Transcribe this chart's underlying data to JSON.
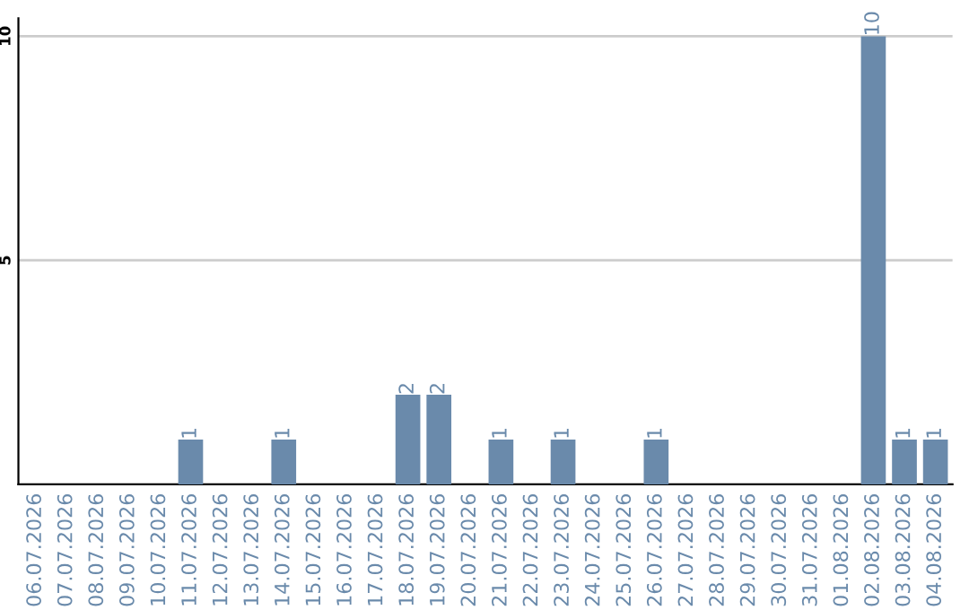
{
  "chart_data": {
    "type": "bar",
    "categories": [
      "06.07.2026",
      "07.07.2026",
      "08.07.2026",
      "09.07.2026",
      "10.07.2026",
      "11.07.2026",
      "12.07.2026",
      "13.07.2026",
      "14.07.2026",
      "15.07.2026",
      "16.07.2026",
      "17.07.2026",
      "18.07.2026",
      "19.07.2026",
      "20.07.2026",
      "21.07.2026",
      "22.07.2026",
      "23.07.2026",
      "24.07.2026",
      "25.07.2026",
      "26.07.2026",
      "27.07.2026",
      "28.07.2026",
      "29.07.2026",
      "30.07.2026",
      "31.07.2026",
      "01.08.2026",
      "02.08.2026",
      "03.08.2026",
      "04.08.2026"
    ],
    "values": [
      0,
      0,
      0,
      0,
      0,
      1,
      0,
      0,
      1,
      0,
      0,
      0,
      2,
      2,
      0,
      1,
      0,
      1,
      0,
      0,
      1,
      0,
      0,
      0,
      0,
      0,
      0,
      10,
      1,
      1
    ],
    "value_labels": [
      null,
      null,
      null,
      null,
      null,
      "1",
      null,
      null,
      "1",
      null,
      null,
      null,
      "2",
      "2",
      null,
      "1",
      null,
      "1",
      null,
      null,
      "1",
      null,
      null,
      null,
      null,
      null,
      null,
      "10",
      "1",
      "1"
    ],
    "color": "#6a8aab",
    "ylim": [
      0,
      10.4
    ],
    "yticks": [
      5,
      10
    ],
    "grid": "y"
  }
}
